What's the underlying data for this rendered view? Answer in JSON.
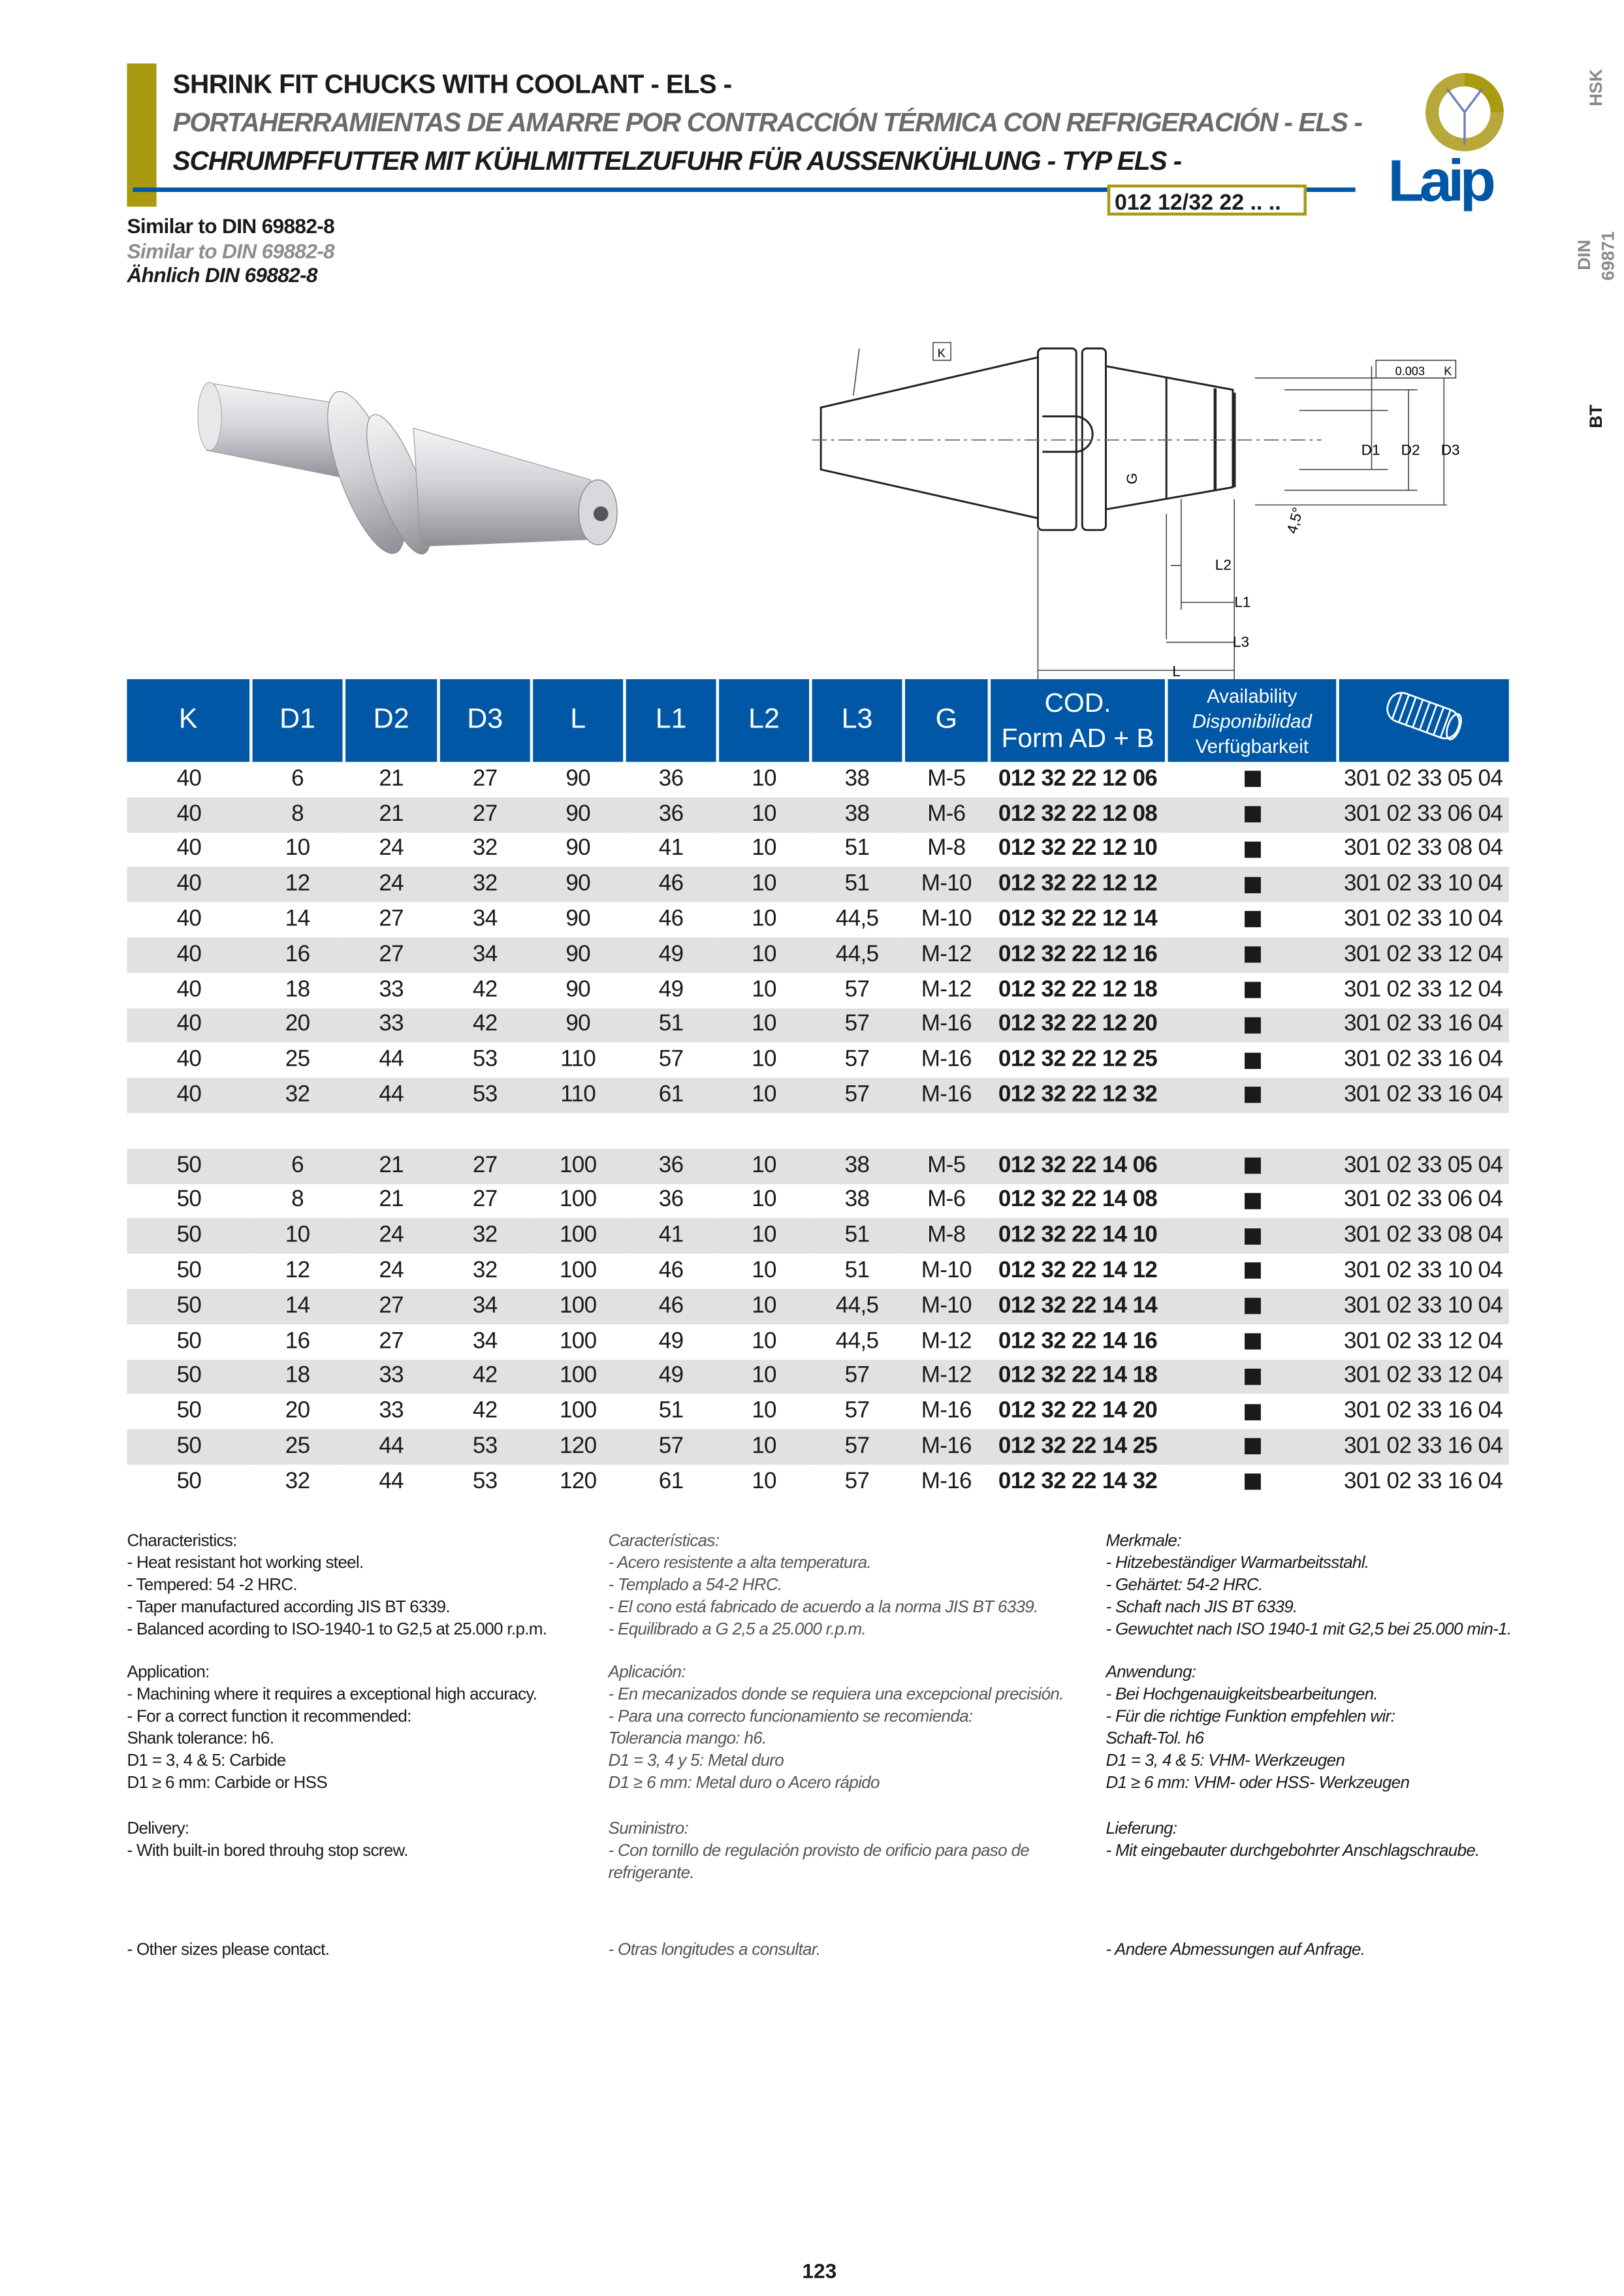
{
  "header": {
    "title_en": "SHRINK FIT CHUCKS WITH COOLANT  - ELS -",
    "title_es": "PORTAHERRAMIENTAS DE AMARRE POR CONTRACCIÓN TÉRMICA  CON REFRIGERACIÓN - ELS -",
    "title_de": "SCHRUMPFFUTTER MIT KÜHLMITTELZUFUHR FÜR AUSSENKÜHLUNG  - TYP ELS -",
    "code_ref": "012 12/32 22 .. ..",
    "brand": "Laip",
    "similar_en": "Similar to DIN 69882-8",
    "similar_es": "Similar to DIN 69882-8",
    "similar_de": "Ähnlich DIN 69882-8",
    "accent_gold": "#a99a10",
    "accent_blue": "#0057a5"
  },
  "side_tabs": {
    "hsk": "HSK",
    "din": "DIN",
    "din_num": "69871",
    "bt": "BT"
  },
  "diagram": {
    "k": "K",
    "tolerance": "0.003",
    "tol_ref": "K",
    "d1": "D1",
    "d2": "D2",
    "d3": "D3",
    "g": "G",
    "angle": "4,5°",
    "l2": "L2",
    "l1": "L1",
    "l3": "L3",
    "l": "L"
  },
  "table": {
    "headers": [
      "K",
      "D1",
      "D2",
      "D3",
      "L",
      "L1",
      "L2",
      "L3",
      "G"
    ],
    "code_header": [
      "COD.",
      "Form AD + B"
    ],
    "avail_header": [
      "Availability",
      "Disponibilidad",
      "Verfügbarkeit"
    ],
    "screw_icon": "stop-screw-icon",
    "groups": [
      [
        [
          "40",
          "6",
          "21",
          "27",
          "90",
          "36",
          "10",
          "38",
          "M-5",
          "012 32 22 12 06",
          "301 02 33 05 04"
        ],
        [
          "40",
          "8",
          "21",
          "27",
          "90",
          "36",
          "10",
          "38",
          "M-6",
          "012 32 22 12 08",
          "301 02 33 06 04"
        ],
        [
          "40",
          "10",
          "24",
          "32",
          "90",
          "41",
          "10",
          "51",
          "M-8",
          "012 32 22 12 10",
          "301 02 33 08 04"
        ],
        [
          "40",
          "12",
          "24",
          "32",
          "90",
          "46",
          "10",
          "51",
          "M-10",
          "012 32 22 12 12",
          "301 02 33 10 04"
        ],
        [
          "40",
          "14",
          "27",
          "34",
          "90",
          "46",
          "10",
          "44,5",
          "M-10",
          "012 32 22 12 14",
          "301 02 33 10 04"
        ],
        [
          "40",
          "16",
          "27",
          "34",
          "90",
          "49",
          "10",
          "44,5",
          "M-12",
          "012 32 22 12 16",
          "301 02 33 12 04"
        ],
        [
          "40",
          "18",
          "33",
          "42",
          "90",
          "49",
          "10",
          "57",
          "M-12",
          "012 32 22 12 18",
          "301 02 33 12 04"
        ],
        [
          "40",
          "20",
          "33",
          "42",
          "90",
          "51",
          "10",
          "57",
          "M-16",
          "012 32 22 12 20",
          "301 02 33 16 04"
        ],
        [
          "40",
          "25",
          "44",
          "53",
          "110",
          "57",
          "10",
          "57",
          "M-16",
          "012 32 22 12 25",
          "301 02 33 16 04"
        ],
        [
          "40",
          "32",
          "44",
          "53",
          "110",
          "61",
          "10",
          "57",
          "M-16",
          "012 32 22 12 32",
          "301 02 33 16 04"
        ]
      ],
      [
        [
          "50",
          "6",
          "21",
          "27",
          "100",
          "36",
          "10",
          "38",
          "M-5",
          "012 32 22 14 06",
          "301 02 33 05 04"
        ],
        [
          "50",
          "8",
          "21",
          "27",
          "100",
          "36",
          "10",
          "38",
          "M-6",
          "012 32 22 14 08",
          "301 02 33 06 04"
        ],
        [
          "50",
          "10",
          "24",
          "32",
          "100",
          "41",
          "10",
          "51",
          "M-8",
          "012 32 22 14 10",
          "301 02 33 08 04"
        ],
        [
          "50",
          "12",
          "24",
          "32",
          "100",
          "46",
          "10",
          "51",
          "M-10",
          "012 32 22 14 12",
          "301 02 33 10 04"
        ],
        [
          "50",
          "14",
          "27",
          "34",
          "100",
          "46",
          "10",
          "44,5",
          "M-10",
          "012 32 22 14 14",
          "301 02 33 10 04"
        ],
        [
          "50",
          "16",
          "27",
          "34",
          "100",
          "49",
          "10",
          "44,5",
          "M-12",
          "012 32 22 14 16",
          "301 02 33 12 04"
        ],
        [
          "50",
          "18",
          "33",
          "42",
          "100",
          "49",
          "10",
          "57",
          "M-12",
          "012 32 22 14 18",
          "301 02 33 12 04"
        ],
        [
          "50",
          "20",
          "33",
          "42",
          "100",
          "51",
          "10",
          "57",
          "M-16",
          "012 32 22 14 20",
          "301 02 33 16 04"
        ],
        [
          "50",
          "25",
          "44",
          "53",
          "120",
          "57",
          "10",
          "57",
          "M-16",
          "012 32 22 14 25",
          "301 02 33 16 04"
        ],
        [
          "50",
          "32",
          "44",
          "53",
          "120",
          "61",
          "10",
          "57",
          "M-16",
          "012 32 22 14 32",
          "301 02 33 16 04"
        ]
      ]
    ]
  },
  "notes": {
    "en": {
      "characteristics": "Characteristics:\n- Heat resistant hot working steel.\n- Tempered: 54 -2 HRC.\n- Taper manufactured according JIS BT 6339.\n- Balanced acording to ISO-1940-1 to G2,5 at 25.000 r.p.m.",
      "application": "Application:\n- Machining where it requires a exceptional high accuracy.\n- For a correct function it recommended:\nShank tolerance: h6.\nD1 = 3, 4 & 5: Carbide\nD1 ≥ 6 mm: Carbide or HSS",
      "delivery": "Delivery:\n- With built-in bored throuhg stop screw.",
      "other": "- Other sizes please contact."
    },
    "es": {
      "characteristics": "Características:\n- Acero resistente a alta temperatura.\n- Templado a 54-2 HRC.\n - El cono  está fabricado de acuerdo a la norma JIS BT 6339.\n- Equilibrado a G 2,5  a 25.000 r.p.m.",
      "application": "Aplicación:\n- En mecanizados donde se requiera una excepcional precisión.\n- Para una correcto funcionamiento se recomienda:\nTolerancia mango: h6.\nD1 = 3, 4 y 5: Metal duro\nD1 ≥ 6 mm: Metal duro o Acero rápido",
      "delivery": "Suministro:\n- Con tornillo de regulación provisto de orificio para paso de\nrefrigerante.",
      "other": "- Otras longitudes a consultar."
    },
    "de": {
      "characteristics": "Merkmale:\n- Hitzebeständiger Warmarbeitsstahl.\n- Gehärtet: 54-2 HRC.\n- Schaft nach JIS BT 6339.\n- Gewuchtet nach ISO 1940-1 mit G2,5 bei 25.000 min-1.",
      "application": "Anwendung:\n- Bei Hochgenauigkeitsbearbeitungen.\n- Für die richtige Funktion empfehlen wir:\nSchaft-Tol. h6\nD1 = 3, 4 & 5:  VHM- Werkzeugen\nD1 ≥ 6 mm:  VHM- oder HSS- Werkzeugen",
      "delivery": "Lieferung:\n- Mit eingebauter durchgebohrter Anschlagschraube.",
      "other": "- Andere Abmessungen auf Anfrage."
    }
  },
  "page_number": "123"
}
